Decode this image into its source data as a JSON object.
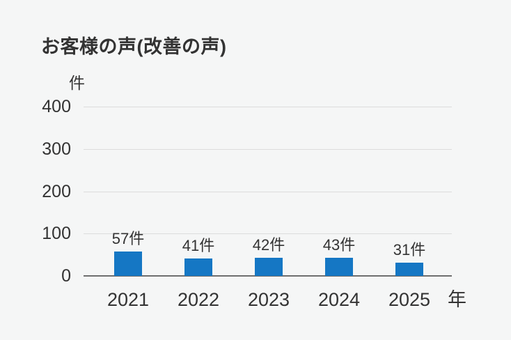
{
  "title": "お客様の声(改善の声)",
  "y_unit_label": "件",
  "x_unit_label": "年",
  "chart_data": {
    "type": "bar",
    "categories": [
      "2021",
      "2022",
      "2023",
      "2024",
      "2025"
    ],
    "values": [
      57,
      41,
      42,
      43,
      31
    ],
    "data_labels": [
      "57件",
      "41件",
      "42件",
      "43件",
      "31件"
    ],
    "title": "お客様の声(改善の声)",
    "xlabel": "年",
    "ylabel": "件",
    "ylim": [
      0,
      400
    ],
    "yticks": [
      0,
      100,
      200,
      300,
      400
    ],
    "grid": true,
    "legend_position": "none",
    "bar_color": "#1577c4"
  },
  "colors": {
    "background": "#f5f6f6",
    "bar": "#1577c4",
    "text": "#333333",
    "gridline": "#dcdcdc",
    "axis_line": "#6e6e6e"
  }
}
